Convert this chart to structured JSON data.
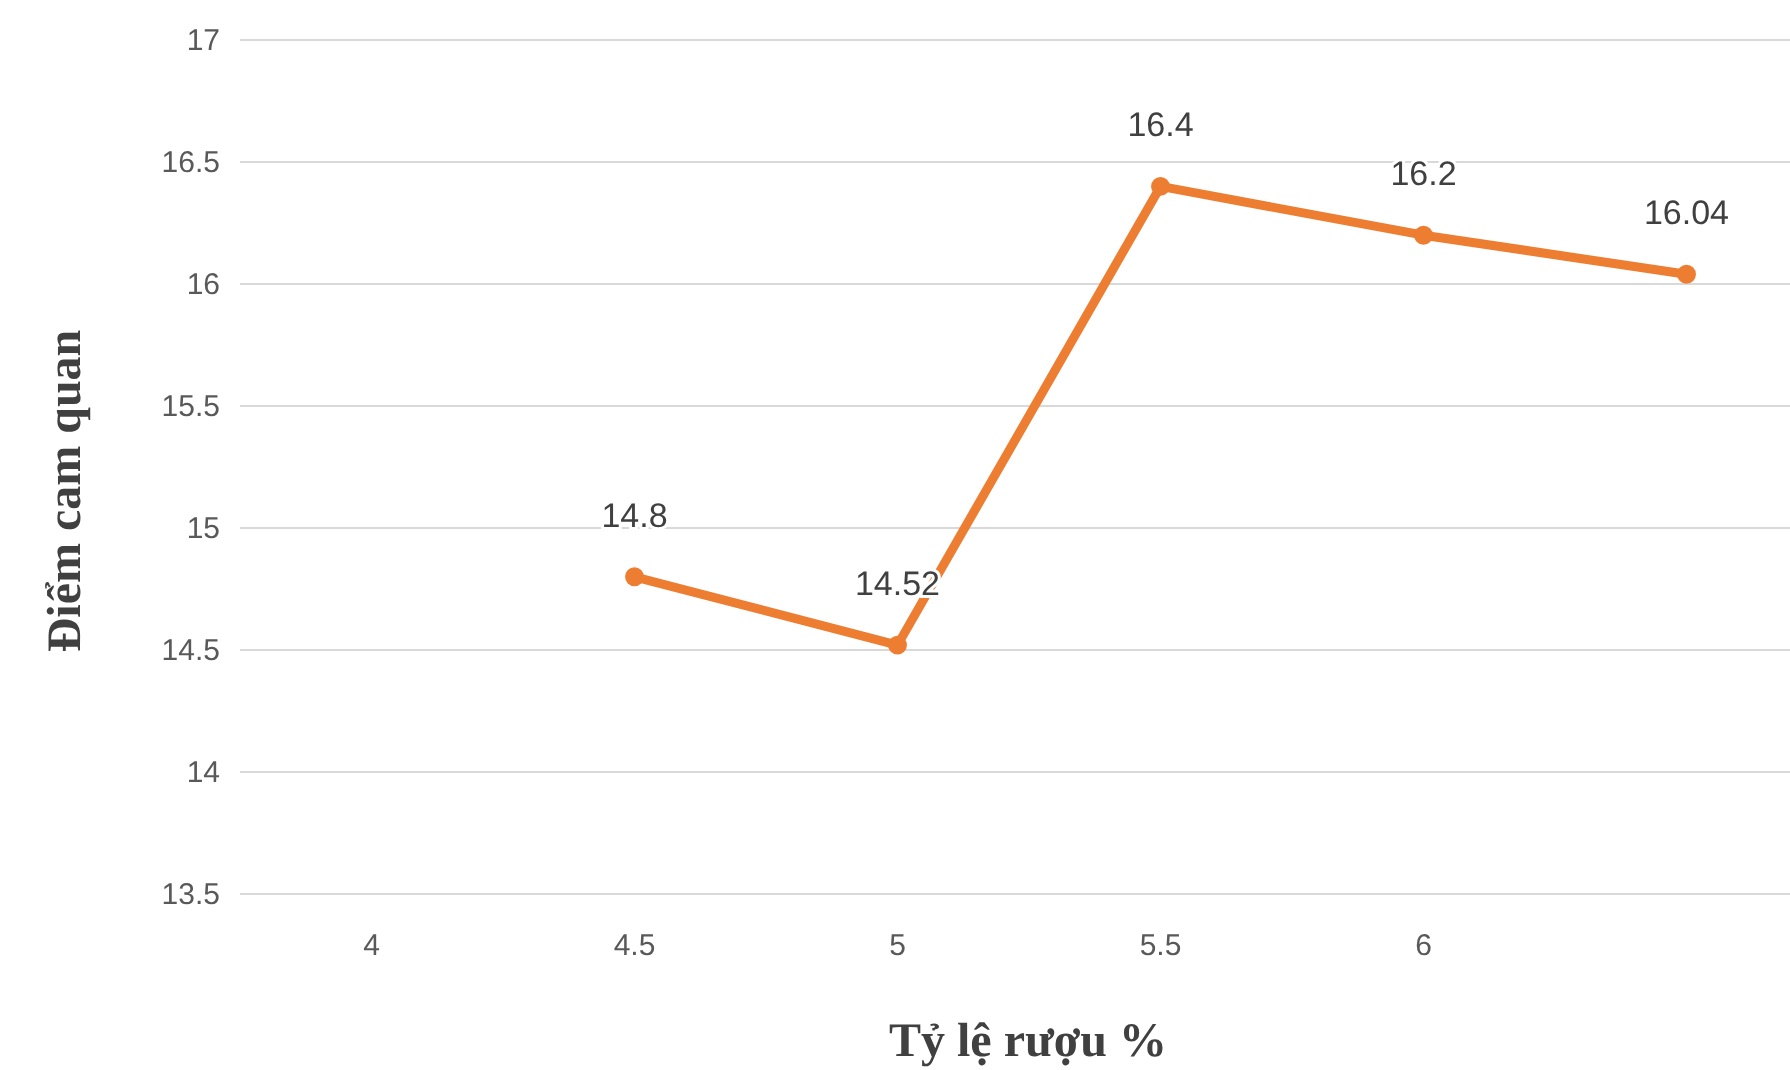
{
  "chart_data": {
    "type": "line",
    "xlabel": "Tỷ lệ rượu %",
    "ylabel": "Điểm cam quan",
    "categories": [
      "4",
      "4.5",
      "5",
      "5.5",
      "6",
      null
    ],
    "series": [
      {
        "color": "#ed7d31",
        "values": [
          null,
          14.8,
          14.52,
          16.4,
          16.2,
          16.04
        ]
      }
    ],
    "ylim": [
      13.5,
      17
    ],
    "yticks": [
      13.5,
      14,
      14.5,
      15,
      15.5,
      16,
      16.5,
      17
    ],
    "grid": "y",
    "marker": "circle",
    "line_style": "solid",
    "data_labels": true
  }
}
